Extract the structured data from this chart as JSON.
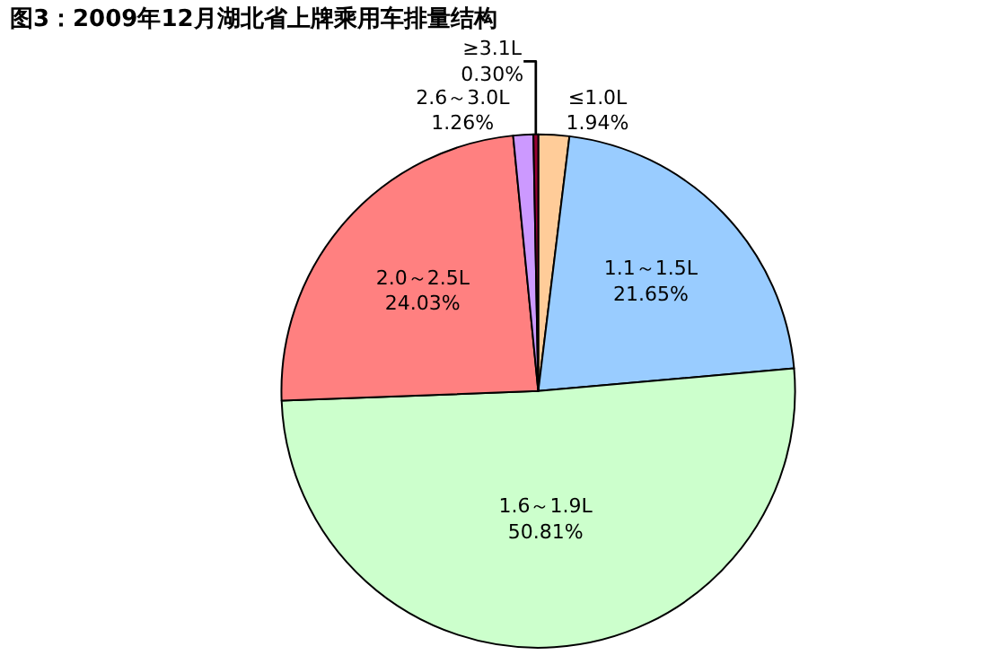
{
  "chart_data": {
    "type": "pie",
    "title": "图3：2009年12月湖北省上牌乘用车排量结构",
    "categories": [
      "≤1.0L",
      "1.1～1.5L",
      "1.6～1.9L",
      "2.0～2.5L",
      "2.6～3.0L",
      "≥3.1L"
    ],
    "values": [
      1.94,
      21.65,
      50.81,
      24.03,
      1.26,
      0.3
    ],
    "value_labels": [
      "1.94%",
      "21.65%",
      "50.81%",
      "24.03%",
      "1.26%",
      "0.30%"
    ],
    "colors": [
      "#ffcc99",
      "#99ccff",
      "#ccffcc",
      "#ff8080",
      "#cc99ff",
      "#990033"
    ],
    "legend": false
  }
}
